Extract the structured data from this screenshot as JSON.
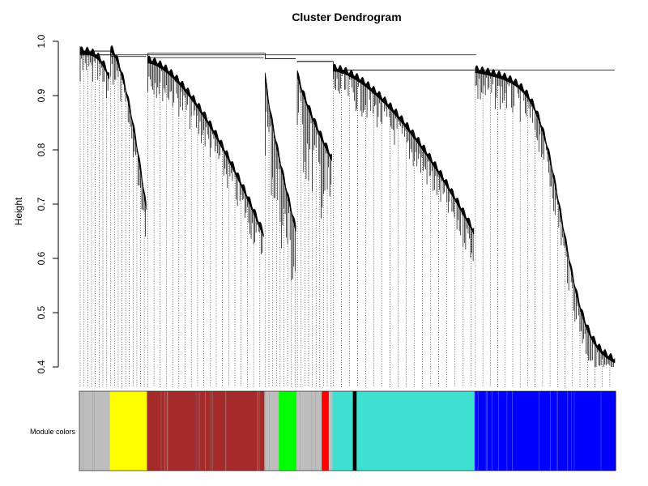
{
  "chart_data": {
    "type": "dendrogram",
    "title": "Cluster Dendrogram",
    "ylabel": "Height",
    "xlabel": "",
    "ylim": [
      0.4,
      1.0
    ],
    "yticks": [
      "0.4",
      "0.5",
      "0.6",
      "0.7",
      "0.8",
      "0.9",
      "1.0"
    ],
    "color_bar_label": "Module colors",
    "modules": [
      {
        "name": "grey",
        "color": "#bebebe",
        "start": 0.0,
        "end": 0.057
      },
      {
        "name": "yellow",
        "color": "#ffff00",
        "start": 0.057,
        "end": 0.126
      },
      {
        "name": "brown",
        "color": "#a52a2a",
        "start": 0.126,
        "end": 0.345
      },
      {
        "name": "grey",
        "color": "#bebebe",
        "start": 0.345,
        "end": 0.372
      },
      {
        "name": "green",
        "color": "#00ff00",
        "start": 0.372,
        "end": 0.405
      },
      {
        "name": "grey",
        "color": "#bebebe",
        "start": 0.405,
        "end": 0.452
      },
      {
        "name": "red",
        "color": "#ff0000",
        "start": 0.452,
        "end": 0.465
      },
      {
        "name": "grey",
        "color": "#bebebe",
        "start": 0.465,
        "end": 0.472
      },
      {
        "name": "turquoise",
        "color": "#40e0d0",
        "start": 0.472,
        "end": 0.51
      },
      {
        "name": "black",
        "color": "#000000",
        "start": 0.51,
        "end": 0.517
      },
      {
        "name": "turquoise",
        "color": "#40e0d0",
        "start": 0.517,
        "end": 0.737
      },
      {
        "name": "blue",
        "color": "#0000ff",
        "start": 0.737,
        "end": 1.0
      }
    ],
    "clusters": [
      {
        "module": "grey",
        "merge": 0.975,
        "tip_top": 0.985,
        "tip_bottom": 0.93,
        "start": 0.0,
        "end": 0.057,
        "shape": "flat"
      },
      {
        "module": "yellow",
        "merge": 0.972,
        "tip_top": 0.98,
        "tip_bottom": 0.69,
        "start": 0.057,
        "end": 0.126,
        "shape": "convex"
      },
      {
        "module": "brown",
        "merge": 0.97,
        "tip_top": 0.96,
        "tip_bottom": 0.64,
        "start": 0.126,
        "end": 0.345,
        "shape": "convex"
      },
      {
        "module": "green",
        "merge": 0.968,
        "tip_top": 0.965,
        "tip_bottom": 0.65,
        "start": 0.345,
        "end": 0.405,
        "shape": "spiky"
      },
      {
        "module": "red",
        "merge": 0.963,
        "tip_top": 0.955,
        "tip_bottom": 0.78,
        "start": 0.405,
        "end": 0.472,
        "shape": "spiky"
      },
      {
        "module": "turquoise",
        "merge": 0.947,
        "tip_top": 0.945,
        "tip_bottom": 0.645,
        "start": 0.472,
        "end": 0.737,
        "shape": "convex"
      },
      {
        "module": "blue",
        "merge": 0.947,
        "tip_top": 0.943,
        "tip_bottom": 0.4,
        "start": 0.737,
        "end": 1.0,
        "shape": "sigmoid"
      }
    ],
    "top_merges": [
      {
        "left": 0,
        "right": 1,
        "height": 0.982
      },
      {
        "left": 2,
        "right": 3,
        "height": 0.978
      },
      {
        "left": 4,
        "right": 5,
        "height": 0.963
      },
      {
        "left": 5,
        "right": 6,
        "height": 0.947
      }
    ],
    "grid": false,
    "legend": "none"
  }
}
